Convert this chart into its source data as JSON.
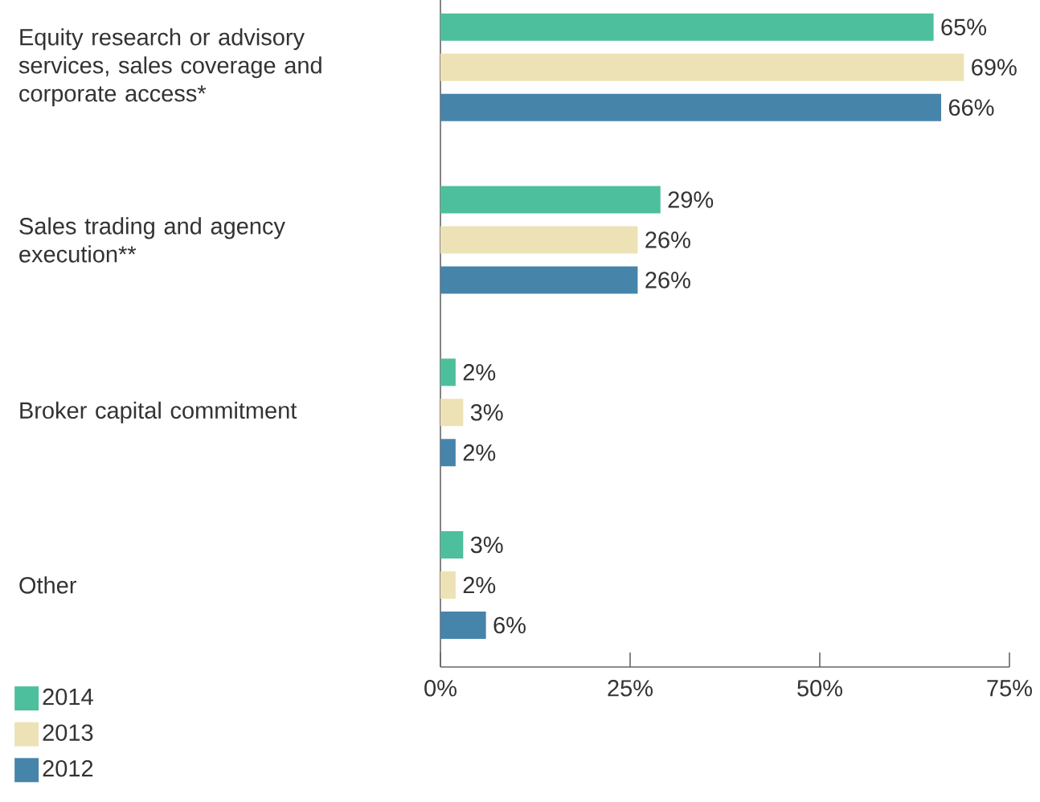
{
  "chart_data": {
    "type": "bar",
    "orientation": "horizontal",
    "categories": [
      "Equity research or advisory services, sales coverage and corporate access*",
      "Sales trading and agency execution**",
      "Broker capital commitment",
      "Other"
    ],
    "series": [
      {
        "name": "2014",
        "color": "#4dbf9c",
        "values": [
          65,
          29,
          2,
          3
        ],
        "value_labels": [
          "65%",
          "29%",
          "2%",
          "3%"
        ]
      },
      {
        "name": "2013",
        "color": "#ede2b5",
        "values": [
          69,
          26,
          3,
          2
        ],
        "value_labels": [
          "69%",
          "26%",
          "3%",
          "2%"
        ]
      },
      {
        "name": "2012",
        "color": "#4784aa",
        "values": [
          66,
          26,
          2,
          6
        ],
        "value_labels": [
          "66%",
          "26%",
          "2%",
          "6%"
        ]
      }
    ],
    "xlim": [
      0,
      75
    ],
    "xticks": [
      {
        "value": 0,
        "label": "0%"
      },
      {
        "value": 25,
        "label": "25%"
      },
      {
        "value": 50,
        "label": "50%"
      },
      {
        "value": 75,
        "label": "75%"
      }
    ],
    "legend": "bottom left",
    "grid": false
  }
}
